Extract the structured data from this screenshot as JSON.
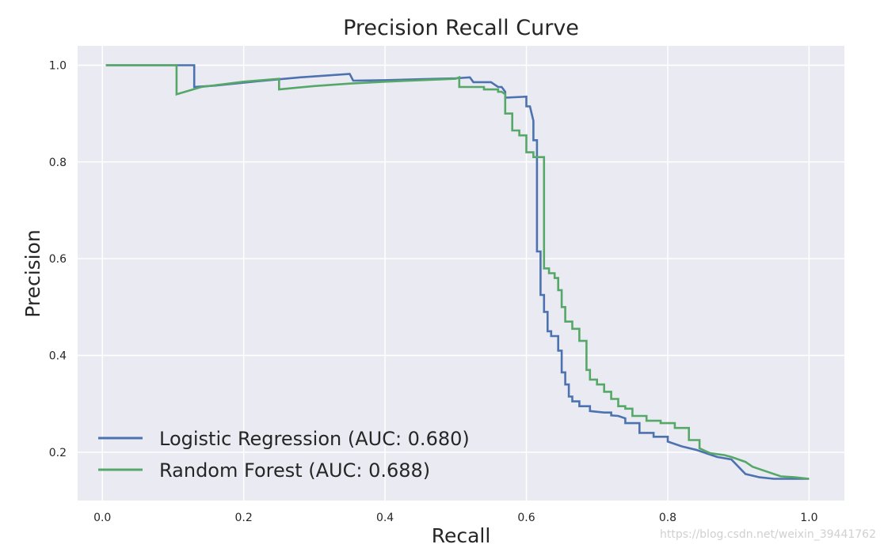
{
  "chart_data": {
    "type": "line",
    "title": "Precision Recall Curve",
    "xlabel": "Recall",
    "ylabel": "Precision",
    "xlim": [
      -0.035,
      1.05
    ],
    "ylim": [
      0.1,
      1.04
    ],
    "xticks": [
      0.0,
      0.2,
      0.4,
      0.6,
      0.8,
      1.0
    ],
    "xtick_labels": [
      "0.0",
      "0.2",
      "0.4",
      "0.6",
      "0.8",
      "1.0"
    ],
    "yticks": [
      0.2,
      0.4,
      0.6,
      0.8,
      1.0
    ],
    "ytick_labels": [
      "0.2",
      "0.4",
      "0.6",
      "0.8",
      "1.0"
    ],
    "grid": true,
    "legend_position": "lower-left",
    "series": [
      {
        "name": "Logistic Regression (AUC: 0.680)",
        "color": "#4C72B0",
        "x": [
          0.005,
          0.13,
          0.13,
          0.16,
          0.22,
          0.28,
          0.35,
          0.355,
          0.4,
          0.45,
          0.5,
          0.52,
          0.525,
          0.55,
          0.56,
          0.565,
          0.57,
          0.57,
          0.6,
          0.6,
          0.605,
          0.61,
          0.61,
          0.615,
          0.615,
          0.62,
          0.62,
          0.625,
          0.625,
          0.63,
          0.63,
          0.635,
          0.635,
          0.645,
          0.645,
          0.65,
          0.65,
          0.655,
          0.655,
          0.66,
          0.66,
          0.665,
          0.665,
          0.675,
          0.675,
          0.69,
          0.69,
          0.71,
          0.72,
          0.72,
          0.73,
          0.74,
          0.74,
          0.76,
          0.76,
          0.78,
          0.78,
          0.8,
          0.8,
          0.82,
          0.84,
          0.86,
          0.87,
          0.89,
          0.9,
          0.91,
          0.93,
          0.95,
          0.97,
          1.0
        ],
        "y": [
          1.0,
          1.0,
          0.955,
          0.958,
          0.967,
          0.975,
          0.982,
          0.968,
          0.969,
          0.971,
          0.973,
          0.975,
          0.965,
          0.965,
          0.955,
          0.955,
          0.945,
          0.933,
          0.935,
          0.915,
          0.915,
          0.885,
          0.845,
          0.845,
          0.615,
          0.615,
          0.525,
          0.525,
          0.49,
          0.49,
          0.45,
          0.45,
          0.44,
          0.44,
          0.41,
          0.41,
          0.365,
          0.365,
          0.34,
          0.34,
          0.315,
          0.315,
          0.305,
          0.305,
          0.295,
          0.295,
          0.285,
          0.282,
          0.282,
          0.276,
          0.275,
          0.27,
          0.26,
          0.26,
          0.24,
          0.24,
          0.232,
          0.232,
          0.222,
          0.212,
          0.205,
          0.195,
          0.19,
          0.185,
          0.17,
          0.155,
          0.148,
          0.145,
          0.145,
          0.145
        ]
      },
      {
        "name": "Random Forest (AUC: 0.688)",
        "color": "#55A868",
        "x": [
          0.005,
          0.105,
          0.105,
          0.14,
          0.2,
          0.25,
          0.25,
          0.3,
          0.35,
          0.4,
          0.45,
          0.5,
          0.505,
          0.505,
          0.54,
          0.54,
          0.56,
          0.56,
          0.565,
          0.57,
          0.57,
          0.58,
          0.58,
          0.59,
          0.59,
          0.6,
          0.6,
          0.61,
          0.61,
          0.625,
          0.625,
          0.632,
          0.632,
          0.64,
          0.64,
          0.645,
          0.645,
          0.65,
          0.65,
          0.655,
          0.655,
          0.665,
          0.665,
          0.675,
          0.675,
          0.685,
          0.685,
          0.69,
          0.69,
          0.7,
          0.7,
          0.71,
          0.71,
          0.72,
          0.72,
          0.73,
          0.73,
          0.74,
          0.74,
          0.75,
          0.75,
          0.77,
          0.77,
          0.79,
          0.79,
          0.81,
          0.81,
          0.83,
          0.83,
          0.845,
          0.845,
          0.86,
          0.88,
          0.89,
          0.91,
          0.92,
          0.94,
          0.96,
          0.98,
          1.0
        ],
        "y": [
          1.0,
          1.0,
          0.94,
          0.955,
          0.966,
          0.972,
          0.95,
          0.957,
          0.962,
          0.966,
          0.969,
          0.972,
          0.975,
          0.955,
          0.955,
          0.95,
          0.95,
          0.945,
          0.945,
          0.94,
          0.9,
          0.9,
          0.865,
          0.865,
          0.855,
          0.855,
          0.82,
          0.82,
          0.81,
          0.81,
          0.58,
          0.58,
          0.57,
          0.57,
          0.56,
          0.56,
          0.535,
          0.535,
          0.5,
          0.5,
          0.47,
          0.47,
          0.455,
          0.455,
          0.43,
          0.43,
          0.37,
          0.37,
          0.35,
          0.35,
          0.34,
          0.34,
          0.325,
          0.325,
          0.31,
          0.31,
          0.295,
          0.295,
          0.29,
          0.29,
          0.275,
          0.275,
          0.265,
          0.265,
          0.26,
          0.26,
          0.25,
          0.25,
          0.225,
          0.225,
          0.208,
          0.198,
          0.194,
          0.19,
          0.18,
          0.17,
          0.16,
          0.15,
          0.148,
          0.145
        ]
      }
    ]
  },
  "watermark": "https://blog.csdn.net/weixin_39441762"
}
